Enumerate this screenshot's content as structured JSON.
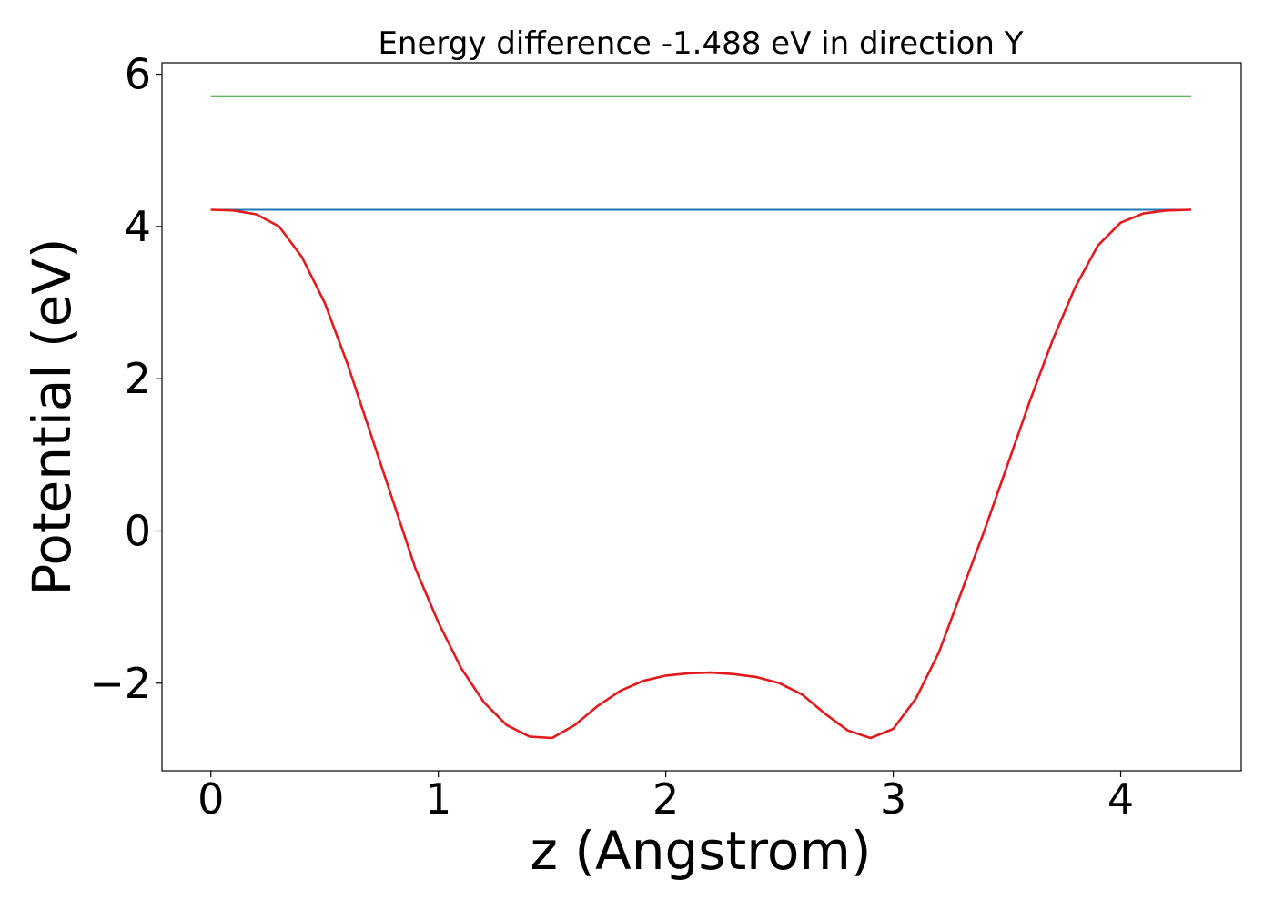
{
  "chart_data": {
    "type": "line",
    "title": "Energy difference -1.488 eV in direction Y",
    "xlabel": "z (Angstrom)",
    "ylabel": "Potential (eV)",
    "xlim": [
      -0.215,
      4.53
    ],
    "ylim": [
      -3.15,
      6.15
    ],
    "xticks": [
      0,
      1,
      2,
      3,
      4
    ],
    "yticks": [
      -2,
      0,
      2,
      4,
      6
    ],
    "xtick_labels": [
      "0",
      "1",
      "2",
      "3",
      "4"
    ],
    "ytick_labels": [
      "−2",
      "0",
      "2",
      "4",
      "6"
    ],
    "grid": false,
    "legend": "none",
    "series": [
      {
        "color": "#2ca02c",
        "x": [
          0,
          4.31
        ],
        "y": [
          5.71,
          5.71
        ]
      },
      {
        "color": "#1f77b4",
        "x": [
          0,
          4.31
        ],
        "y": [
          4.22,
          4.22
        ]
      },
      {
        "color": "#e31a1c",
        "x": [
          0,
          0.1,
          0.2,
          0.3,
          0.4,
          0.5,
          0.6,
          0.7,
          0.8,
          0.9,
          1.0,
          1.1,
          1.2,
          1.3,
          1.4,
          1.5,
          1.6,
          1.7,
          1.8,
          1.9,
          2.0,
          2.1,
          2.2,
          2.3,
          2.4,
          2.5,
          2.6,
          2.7,
          2.8,
          2.9,
          3.0,
          3.1,
          3.2,
          3.3,
          3.4,
          3.5,
          3.6,
          3.7,
          3.8,
          3.9,
          4.0,
          4.1,
          4.2,
          4.31
        ],
        "y": [
          4.22,
          4.21,
          4.16,
          4.0,
          3.6,
          3.0,
          2.2,
          1.3,
          0.4,
          -0.5,
          -1.2,
          -1.8,
          -2.25,
          -2.55,
          -2.7,
          -2.72,
          -2.55,
          -2.3,
          -2.1,
          -1.97,
          -1.9,
          -1.87,
          -1.86,
          -1.88,
          -1.92,
          -2.0,
          -2.15,
          -2.4,
          -2.62,
          -2.72,
          -2.6,
          -2.2,
          -1.6,
          -0.8,
          0.0,
          0.85,
          1.7,
          2.5,
          3.2,
          3.75,
          4.05,
          4.17,
          4.21,
          4.22
        ]
      }
    ]
  }
}
